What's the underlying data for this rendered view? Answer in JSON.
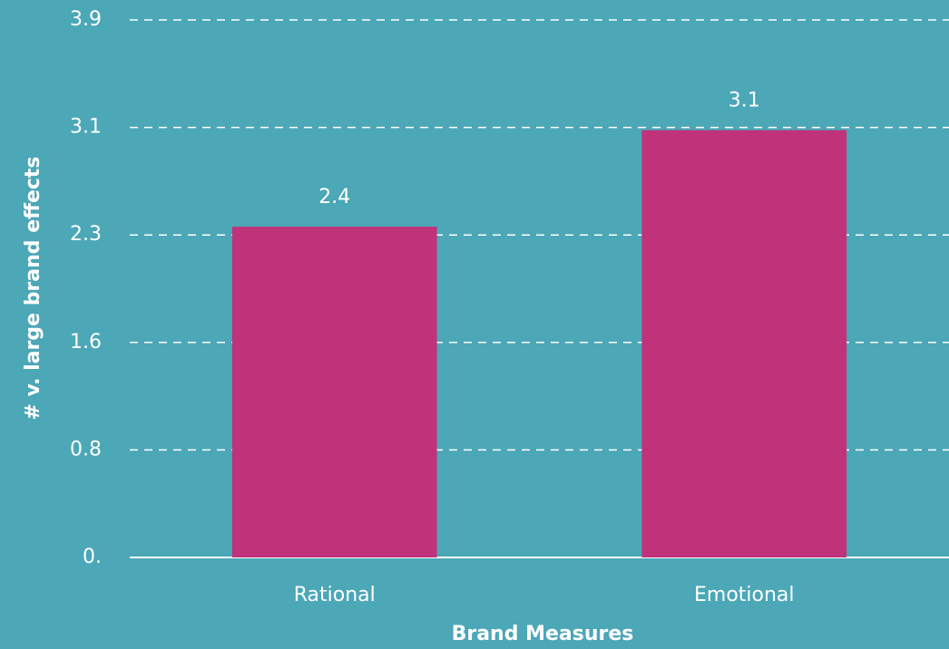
{
  "chart_data": {
    "type": "bar",
    "x_label": "Brand Measures",
    "y_label": "# v. large brand effects",
    "categories": [
      "Rational",
      "Emotional"
    ],
    "values": [
      2.4,
      3.1
    ],
    "color": "#c0327a",
    "background": "#4ca7b7",
    "ylim": [
      0,
      3.9
    ],
    "yticks": [
      {
        "value": 0,
        "label": "0."
      },
      {
        "value": 0.78,
        "label": "0.8"
      },
      {
        "value": 1.56,
        "label": "1.6"
      },
      {
        "value": 2.34,
        "label": "2.3"
      },
      {
        "value": 3.12,
        "label": "3.1"
      },
      3.9
    ],
    "grid": true
  }
}
